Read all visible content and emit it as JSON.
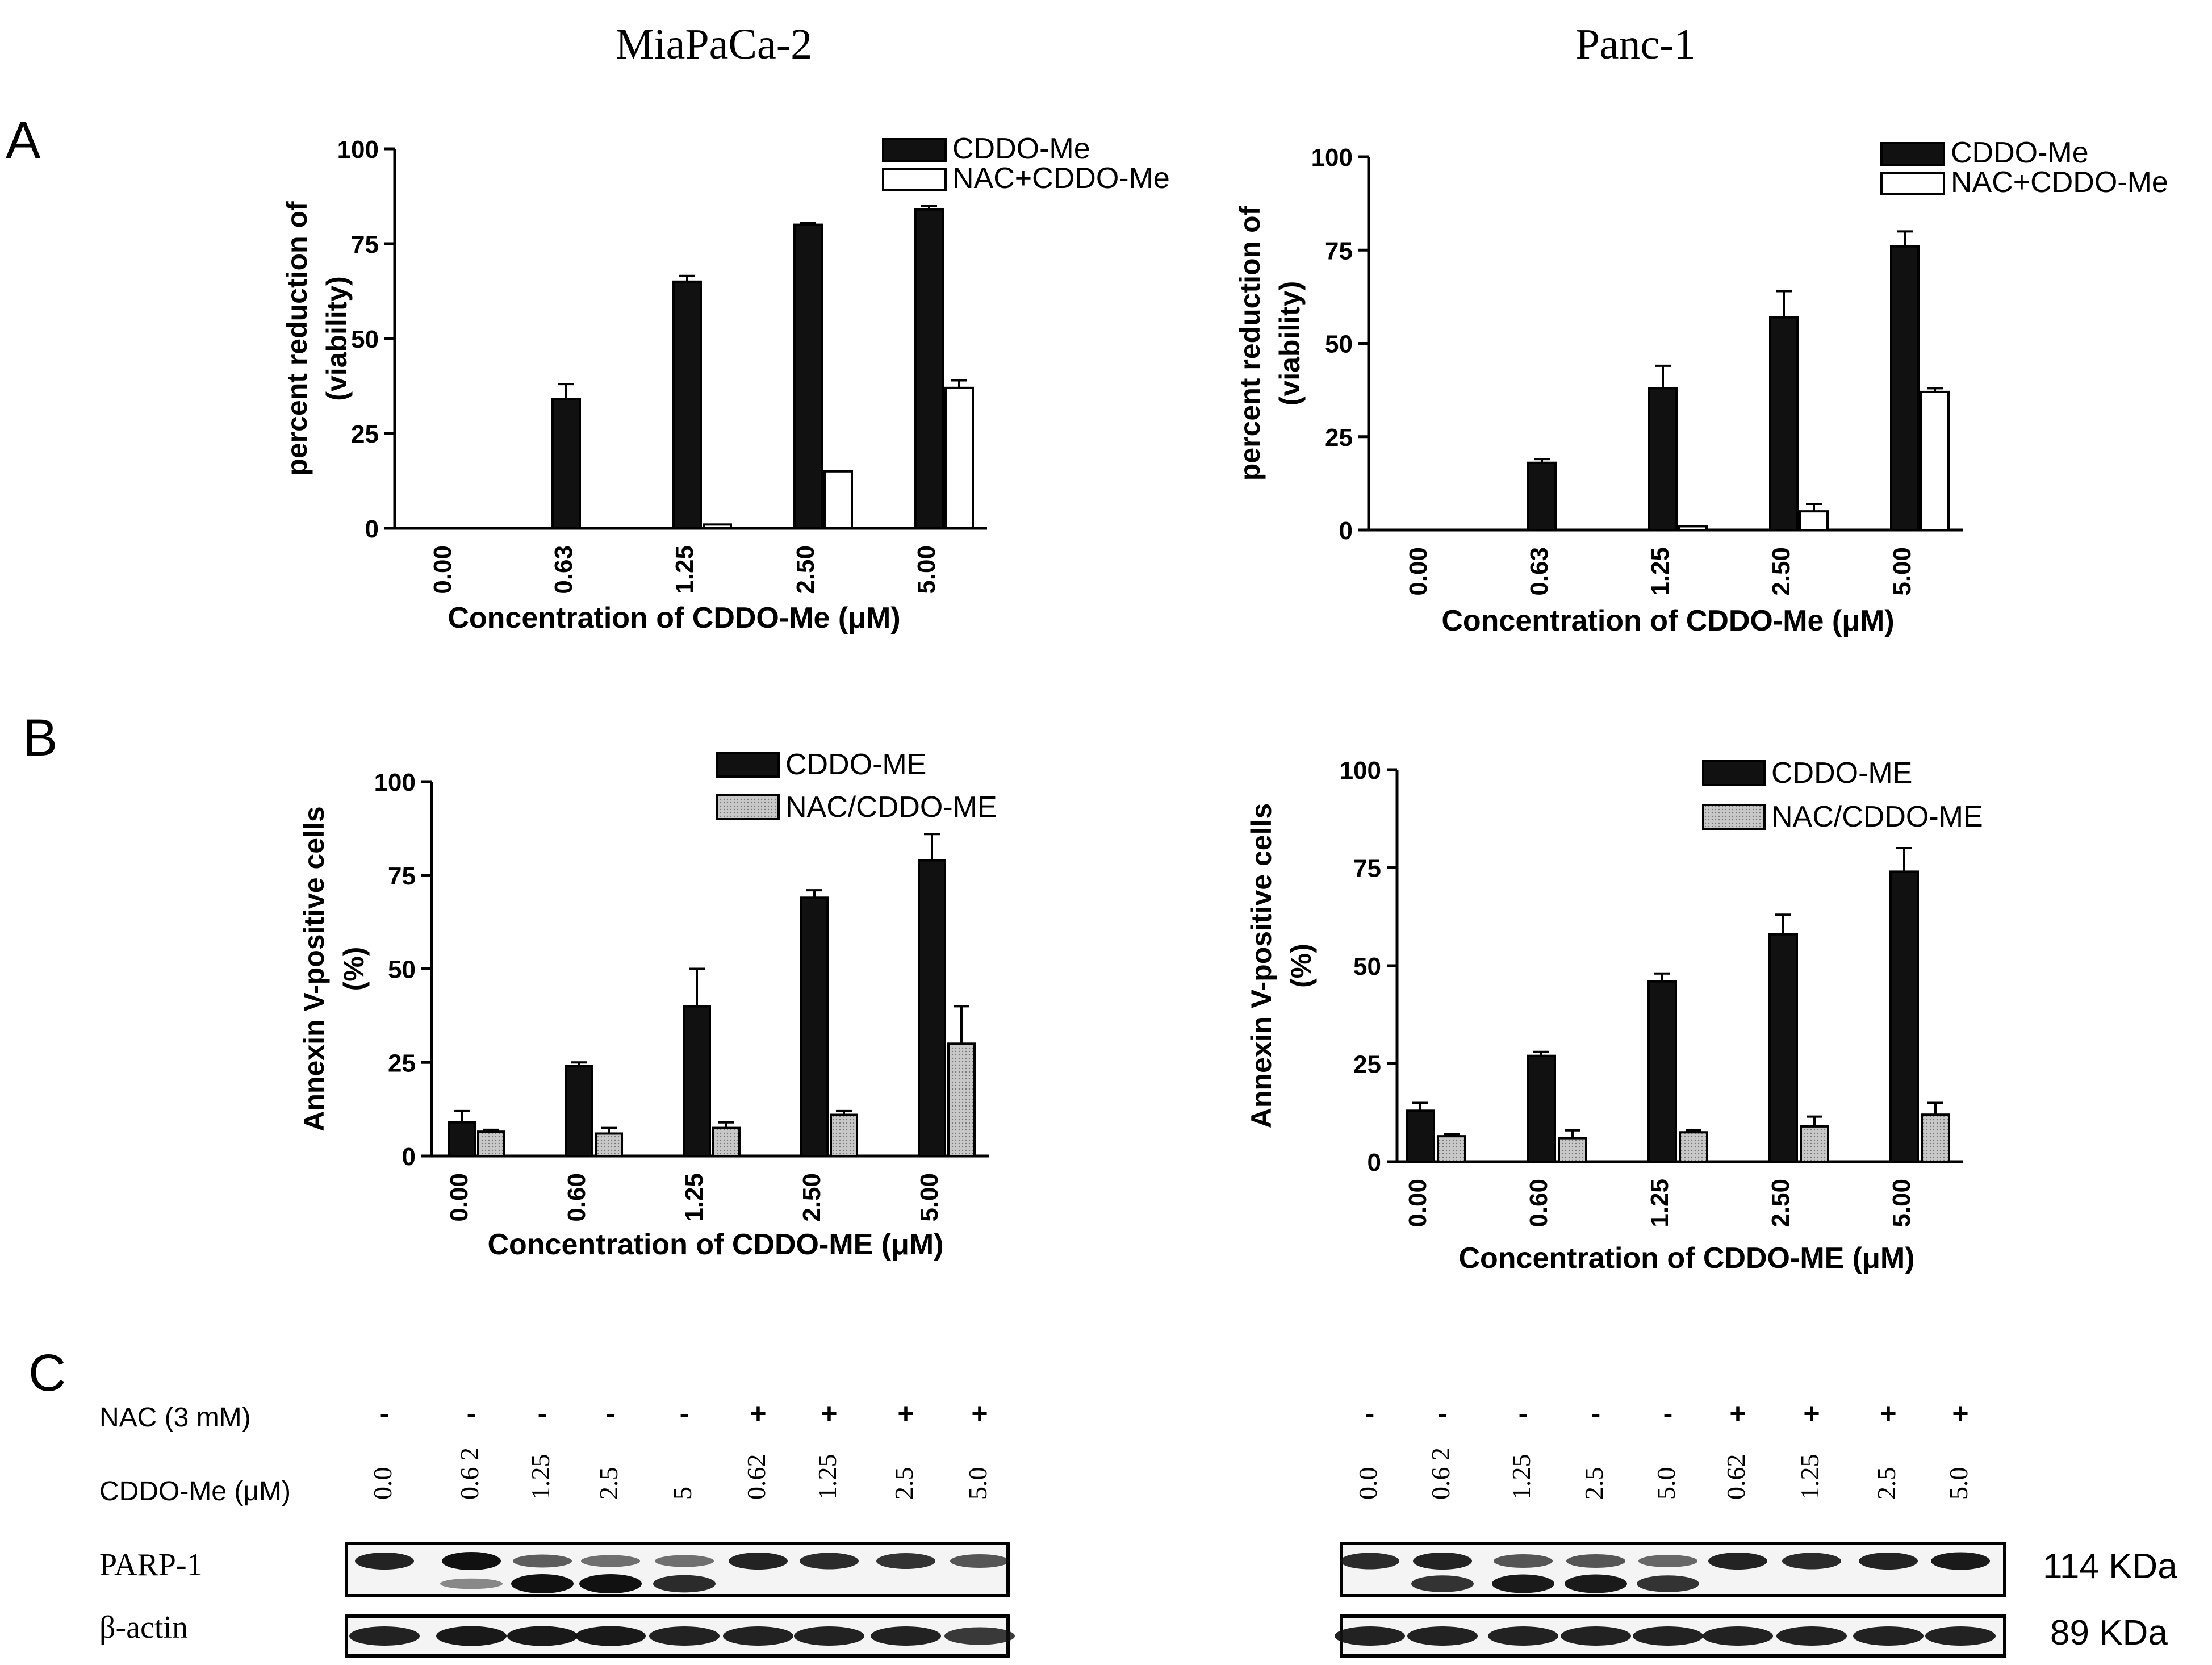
{
  "figure": {
    "columns": [
      "MiaPaCa-2",
      "Panc-1"
    ],
    "panel_letters": [
      "A",
      "B",
      "C"
    ]
  },
  "colors": {
    "black_bar": "#111111",
    "open_bar": "#ffffff",
    "gray_bar": "#c8c8c8",
    "axis": "#000000"
  },
  "chart_data": [
    {
      "id": "A-MiaPaCa-2",
      "type": "bar",
      "ylabel": [
        "percent reduction of",
        "(viability)"
      ],
      "xlabel": "Concentration of CDDO-Me (μM)",
      "categories": [
        "0.00",
        "0.63",
        "1.25",
        "2.50",
        "5.00"
      ],
      "ylim": [
        0,
        100
      ],
      "yticks": [
        "0",
        "25",
        "50",
        "75",
        "100"
      ],
      "series": [
        {
          "name": "CDDO-Me",
          "style": "black",
          "values": [
            0,
            34,
            65,
            80,
            84
          ],
          "errors": [
            0,
            4,
            1.5,
            0.5,
            1
          ]
        },
        {
          "name": "NAC+CDDO-Me",
          "style": "open",
          "values": [
            0,
            0,
            1,
            15,
            37
          ],
          "errors": [
            0,
            0,
            0,
            0,
            2
          ]
        }
      ]
    },
    {
      "id": "A-Panc-1",
      "type": "bar",
      "ylabel": [
        "percent reduction of",
        "(viability)"
      ],
      "xlabel": "Concentration of CDDO-Me (μM)",
      "categories": [
        "0.00",
        "0.63",
        "1.25",
        "2.50",
        "5.00"
      ],
      "ylim": [
        0,
        100
      ],
      "yticks": [
        "0",
        "25",
        "50",
        "75",
        "100"
      ],
      "series": [
        {
          "name": "CDDO-Me",
          "style": "black",
          "values": [
            0,
            18,
            38,
            57,
            76
          ],
          "errors": [
            0,
            1,
            6,
            7,
            4
          ]
        },
        {
          "name": "NAC+CDDO-Me",
          "style": "open",
          "values": [
            0,
            0,
            1,
            5,
            37
          ],
          "errors": [
            0,
            0,
            0,
            2,
            1
          ]
        }
      ]
    },
    {
      "id": "B-MiaPaCa-2",
      "type": "bar",
      "ylabel": [
        "Annexin V-positive cells",
        "(%)"
      ],
      "xlabel": "Concentration of CDDO-ME (μM)",
      "categories": [
        "0.00",
        "0.60",
        "1.25",
        "2.50",
        "5.00"
      ],
      "ylim": [
        0,
        100
      ],
      "yticks": [
        "0",
        "25",
        "50",
        "75",
        "100"
      ],
      "series": [
        {
          "name": "CDDO-ME",
          "style": "black",
          "values": [
            9,
            24,
            40,
            69,
            79
          ],
          "errors": [
            3,
            1,
            10,
            2,
            7
          ]
        },
        {
          "name": "NAC/CDDO-ME",
          "style": "gray",
          "values": [
            6.5,
            6,
            7.5,
            11,
            30
          ],
          "errors": [
            0.5,
            1.5,
            1.5,
            1,
            10
          ]
        }
      ]
    },
    {
      "id": "B-Panc-1",
      "type": "bar",
      "ylabel": [
        "Annexin V-positive cells",
        "(%)"
      ],
      "xlabel": "Concentration of CDDO-ME (μM)",
      "categories": [
        "0.00",
        "0.60",
        "1.25",
        "2.50",
        "5.00"
      ],
      "ylim": [
        0,
        100
      ],
      "yticks": [
        "0",
        "25",
        "50",
        "75",
        "100"
      ],
      "series": [
        {
          "name": "CDDO-ME",
          "style": "black",
          "values": [
            13,
            27,
            46,
            58,
            74
          ],
          "errors": [
            2,
            1,
            2,
            5,
            6
          ]
        },
        {
          "name": "NAC/CDDO-ME",
          "style": "gray",
          "values": [
            6.5,
            6,
            7.5,
            9,
            12
          ],
          "errors": [
            0.5,
            2,
            0.5,
            2.5,
            3
          ]
        }
      ]
    }
  ],
  "blots": {
    "row_labels": {
      "nac": "NAC (3 mM)",
      "cddo": "CDDO-Me (μM)",
      "parp": "PARP-1",
      "actin": "β-actin"
    },
    "sizes": {
      "parp": "114 KDa",
      "actin": "89 KDa"
    },
    "left": {
      "nac": [
        "-",
        "-",
        "-",
        "-",
        "-",
        "+",
        "+",
        "+",
        "+"
      ],
      "cddo": [
        "0.0",
        "0.6 2",
        "1.25",
        "2.5",
        "5",
        "0.62",
        "1.25",
        "2.5",
        "5.0"
      ],
      "parp_full": [
        0.9,
        1.0,
        0.55,
        0.45,
        0.45,
        0.9,
        0.85,
        0.8,
        0.6
      ],
      "parp_cleaved": [
        0.0,
        0.3,
        1.0,
        1.0,
        0.85,
        0.0,
        0.0,
        0.0,
        0.0
      ],
      "actin": [
        0.9,
        0.95,
        0.95,
        0.95,
        0.9,
        0.9,
        0.9,
        0.9,
        0.75
      ]
    },
    "right": {
      "nac": [
        "-",
        "-",
        "-",
        "-",
        "-",
        "+",
        "+",
        "+",
        "+"
      ],
      "cddo": [
        "0.0",
        "0.6 2",
        "1.25",
        "2.5",
        "5.0",
        "0.62",
        "1.25",
        "2.5",
        "5.0"
      ],
      "parp_full": [
        0.85,
        0.9,
        0.6,
        0.6,
        0.5,
        0.9,
        0.85,
        0.9,
        0.95
      ],
      "parp_cleaved": [
        0.0,
        0.8,
        0.95,
        0.95,
        0.8,
        0.0,
        0.0,
        0.0,
        0.0
      ],
      "actin": [
        0.9,
        0.9,
        0.9,
        0.9,
        0.9,
        0.9,
        0.9,
        0.9,
        0.9
      ]
    }
  }
}
